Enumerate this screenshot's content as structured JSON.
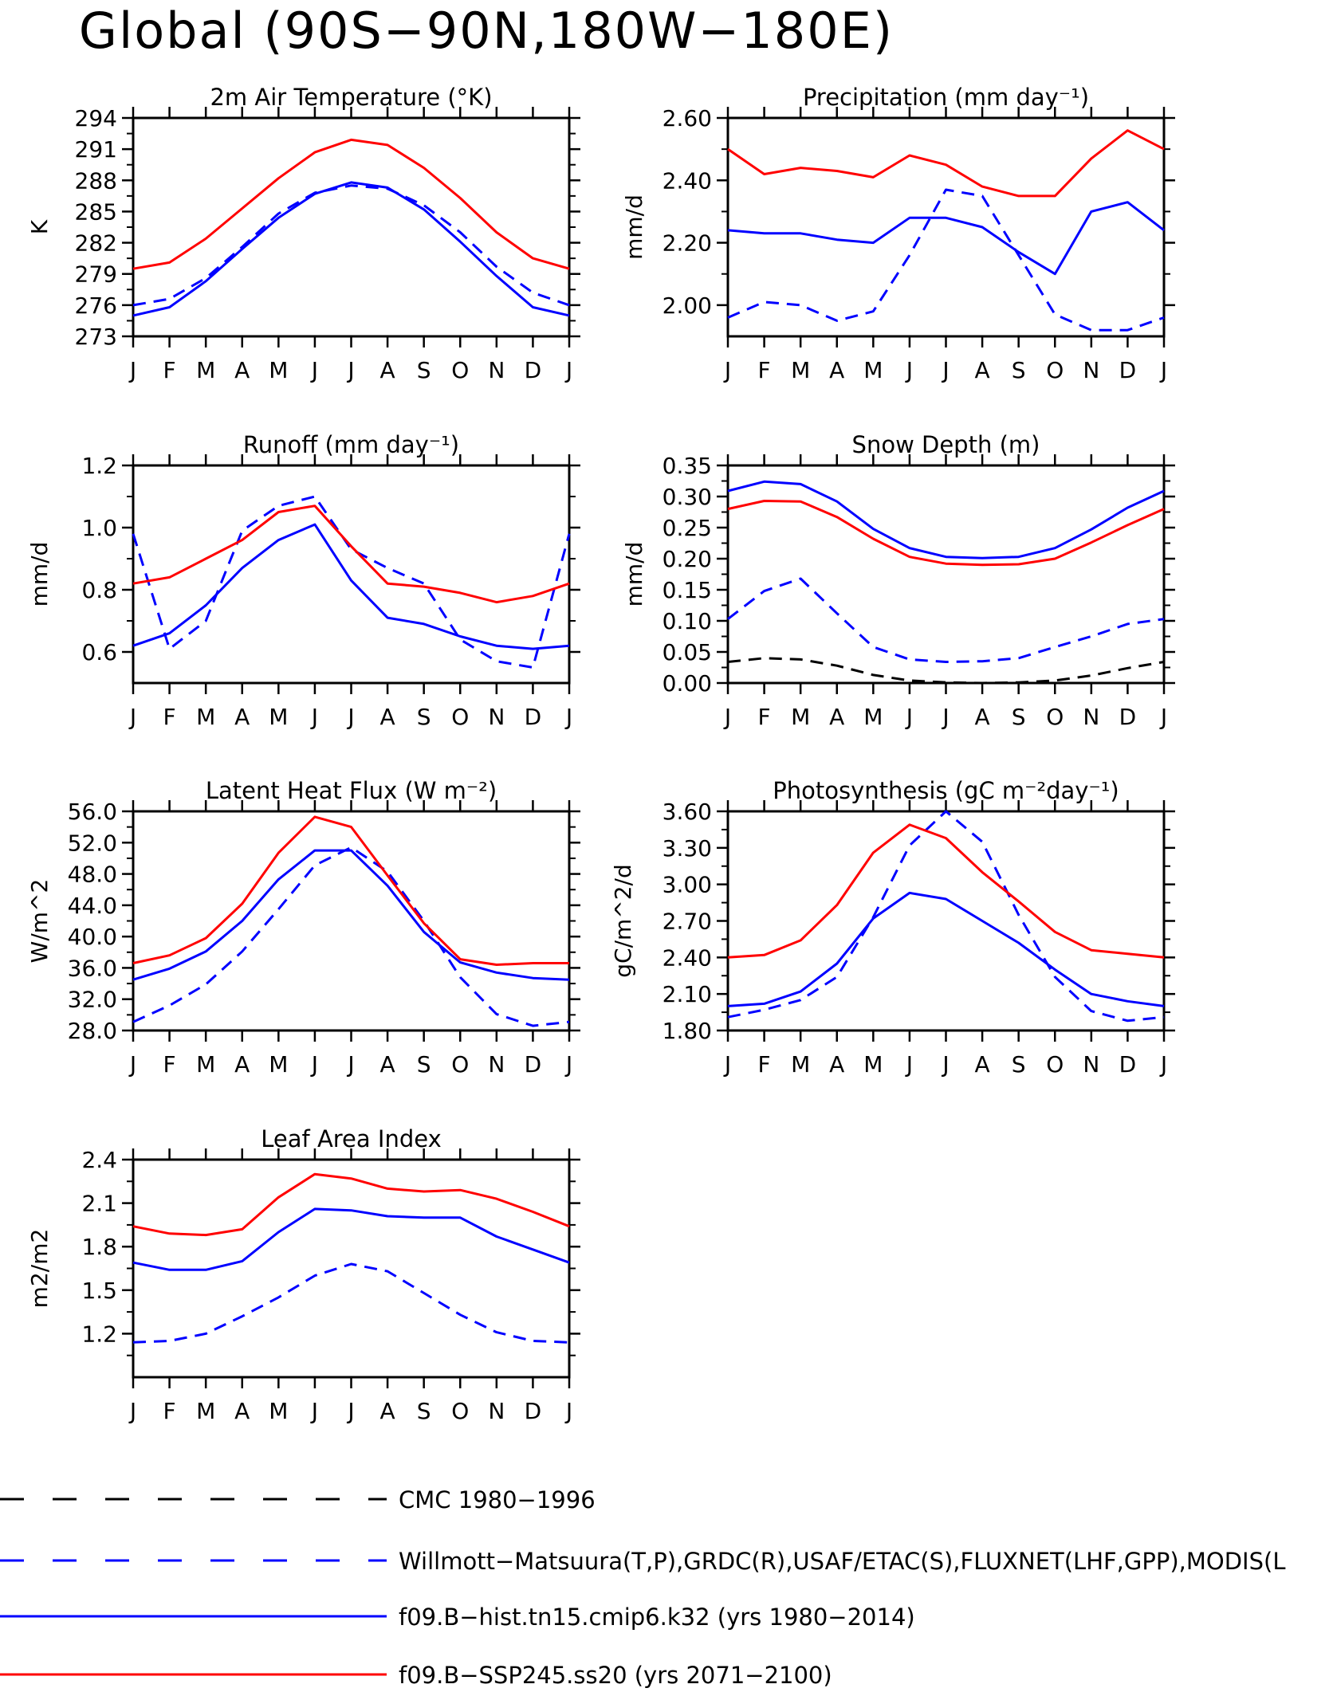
{
  "figure_title": "Global (90S−90N,180W−180E)",
  "colors": {
    "red": "#ff0000",
    "blue": "#0000ff",
    "black": "#000000"
  },
  "months": [
    "J",
    "F",
    "M",
    "A",
    "M",
    "J",
    "J",
    "A",
    "S",
    "O",
    "N",
    "D",
    "J"
  ],
  "legend": [
    {
      "label": "CMC 1980−1996",
      "color": "#000000",
      "style": "dashed"
    },
    {
      "label": "Willmott−Matsuura(T,P),GRDC(R),USAF/ETAC(S),FLUXNET(LHF,GPP),MODIS(L",
      "color": "#0000ff",
      "style": "dashed"
    },
    {
      "label": "f09.B−hist.tn15.cmip6.k32 (yrs 1980−2014)",
      "color": "#0000ff",
      "style": "solid"
    },
    {
      "label": "f09.B−SSP245.ss20 (yrs 2071−2100)",
      "color": "#ff0000",
      "style": "solid"
    }
  ],
  "chart_data": [
    {
      "type": "line",
      "title": "2m Air Temperature (°K)",
      "ylabel": "K",
      "ylim": [
        273,
        294
      ],
      "yticks": [
        "273",
        "276",
        "279",
        "282",
        "285",
        "288",
        "291",
        "294"
      ],
      "categories": [
        "J",
        "F",
        "M",
        "A",
        "M",
        "J",
        "J",
        "A",
        "S",
        "O",
        "N",
        "D",
        "J"
      ],
      "series": [
        {
          "style": "dashed",
          "color": "#0000ff",
          "values": [
            276.0,
            276.6,
            278.6,
            281.6,
            284.8,
            286.8,
            287.5,
            287.2,
            285.6,
            283.0,
            279.7,
            277.2,
            276.0
          ]
        },
        {
          "style": "solid",
          "color": "#0000ff",
          "values": [
            275.0,
            275.8,
            278.3,
            281.4,
            284.4,
            286.7,
            287.8,
            287.3,
            285.2,
            282.1,
            278.8,
            275.8,
            275.0
          ]
        },
        {
          "style": "solid",
          "color": "#ff0000",
          "values": [
            279.5,
            280.1,
            282.4,
            285.3,
            288.2,
            290.7,
            291.9,
            291.4,
            289.2,
            286.3,
            283.0,
            280.5,
            279.5
          ]
        }
      ]
    },
    {
      "type": "line",
      "title": "Precipitation (mm day⁻¹)",
      "ylabel": "mm/d",
      "ylim": [
        1.9,
        2.6
      ],
      "yticks": [
        "2.00",
        "2.20",
        "2.40",
        "2.60"
      ],
      "categories": [
        "J",
        "F",
        "M",
        "A",
        "M",
        "J",
        "J",
        "A",
        "S",
        "O",
        "N",
        "D",
        "J"
      ],
      "series": [
        {
          "style": "dashed",
          "color": "#0000ff",
          "values": [
            1.96,
            2.01,
            2.0,
            1.95,
            1.98,
            2.16,
            2.37,
            2.35,
            2.16,
            1.97,
            1.92,
            1.92,
            1.96
          ]
        },
        {
          "style": "solid",
          "color": "#0000ff",
          "values": [
            2.24,
            2.23,
            2.23,
            2.21,
            2.2,
            2.28,
            2.28,
            2.25,
            2.17,
            2.1,
            2.3,
            2.33,
            2.24
          ]
        },
        {
          "style": "solid",
          "color": "#ff0000",
          "values": [
            2.5,
            2.42,
            2.44,
            2.43,
            2.41,
            2.48,
            2.45,
            2.38,
            2.35,
            2.35,
            2.47,
            2.56,
            2.5
          ]
        }
      ]
    },
    {
      "type": "line",
      "title": "Runoff (mm day⁻¹)",
      "ylabel": "mm/d",
      "ylim": [
        0.5,
        1.2
      ],
      "yticks": [
        "0.6",
        "0.8",
        "1.0",
        "1.2"
      ],
      "categories": [
        "J",
        "F",
        "M",
        "A",
        "M",
        "J",
        "J",
        "A",
        "S",
        "O",
        "N",
        "D",
        "J"
      ],
      "series": [
        {
          "style": "dashed",
          "color": "#0000ff",
          "values": [
            0.98,
            0.61,
            0.7,
            0.99,
            1.07,
            1.1,
            0.93,
            0.87,
            0.82,
            0.64,
            0.57,
            0.55,
            0.98
          ]
        },
        {
          "style": "solid",
          "color": "#0000ff",
          "values": [
            0.62,
            0.66,
            0.75,
            0.87,
            0.96,
            1.01,
            0.83,
            0.71,
            0.69,
            0.65,
            0.62,
            0.61,
            0.62
          ]
        },
        {
          "style": "solid",
          "color": "#ff0000",
          "values": [
            0.82,
            0.84,
            0.9,
            0.96,
            1.05,
            1.07,
            0.94,
            0.82,
            0.81,
            0.79,
            0.76,
            0.78,
            0.82
          ]
        }
      ]
    },
    {
      "type": "line",
      "title": "Snow Depth (m)",
      "ylabel": "mm/d",
      "ylim": [
        0,
        0.35
      ],
      "yticks": [
        "0.00",
        "0.05",
        "0.10",
        "0.15",
        "0.20",
        "0.25",
        "0.30",
        "0.35"
      ],
      "categories": [
        "J",
        "F",
        "M",
        "A",
        "M",
        "J",
        "J",
        "A",
        "S",
        "O",
        "N",
        "D",
        "J"
      ],
      "series": [
        {
          "style": "dashed",
          "color": "#000000",
          "values": [
            0.034,
            0.04,
            0.038,
            0.028,
            0.013,
            0.004,
            0.001,
            0.0,
            0.001,
            0.004,
            0.012,
            0.024,
            0.034
          ]
        },
        {
          "style": "dashed",
          "color": "#0000ff",
          "values": [
            0.103,
            0.148,
            0.168,
            0.112,
            0.058,
            0.038,
            0.034,
            0.035,
            0.04,
            0.058,
            0.075,
            0.095,
            0.103
          ]
        },
        {
          "style": "solid",
          "color": "#0000ff",
          "values": [
            0.309,
            0.324,
            0.32,
            0.292,
            0.248,
            0.217,
            0.203,
            0.201,
            0.203,
            0.217,
            0.247,
            0.282,
            0.309
          ]
        },
        {
          "style": "solid",
          "color": "#ff0000",
          "values": [
            0.28,
            0.293,
            0.292,
            0.267,
            0.232,
            0.203,
            0.192,
            0.19,
            0.191,
            0.2,
            0.226,
            0.254,
            0.28
          ]
        }
      ]
    },
    {
      "type": "line",
      "title": "Latent Heat Flux (W m⁻²)",
      "ylabel": "W/m^2",
      "ylim": [
        28,
        56
      ],
      "yticks": [
        "28.0",
        "32.0",
        "36.0",
        "40.0",
        "44.0",
        "48.0",
        "52.0",
        "56.0"
      ],
      "categories": [
        "J",
        "F",
        "M",
        "A",
        "M",
        "J",
        "J",
        "A",
        "S",
        "O",
        "N",
        "D",
        "J"
      ],
      "series": [
        {
          "style": "dashed",
          "color": "#0000ff",
          "values": [
            29.1,
            31.2,
            33.9,
            38.1,
            43.5,
            49.1,
            51.4,
            48.3,
            42.0,
            34.8,
            30.1,
            28.6,
            29.1
          ]
        },
        {
          "style": "solid",
          "color": "#0000ff",
          "values": [
            34.5,
            35.9,
            38.1,
            42.0,
            47.3,
            51.0,
            51.0,
            46.5,
            40.6,
            36.7,
            35.4,
            34.7,
            34.5
          ]
        },
        {
          "style": "solid",
          "color": "#ff0000",
          "values": [
            36.6,
            37.6,
            39.8,
            44.2,
            50.7,
            55.3,
            54.0,
            47.8,
            41.7,
            37.1,
            36.4,
            36.6,
            36.6
          ]
        }
      ]
    },
    {
      "type": "line",
      "title": "Photosynthesis (gC m⁻²day⁻¹)",
      "ylabel": "gC/m^2/d",
      "ylim": [
        1.8,
        3.6
      ],
      "yticks": [
        "1.80",
        "2.10",
        "2.40",
        "2.70",
        "3.00",
        "3.30",
        "3.60"
      ],
      "categories": [
        "J",
        "F",
        "M",
        "A",
        "M",
        "J",
        "J",
        "A",
        "S",
        "O",
        "N",
        "D",
        "J"
      ],
      "series": [
        {
          "style": "dashed",
          "color": "#0000ff",
          "values": [
            1.91,
            1.97,
            2.05,
            2.24,
            2.73,
            3.32,
            3.6,
            3.35,
            2.75,
            2.24,
            1.96,
            1.88,
            1.91
          ]
        },
        {
          "style": "solid",
          "color": "#0000ff",
          "values": [
            2.0,
            2.02,
            2.12,
            2.35,
            2.72,
            2.93,
            2.88,
            2.7,
            2.52,
            2.3,
            2.1,
            2.04,
            2.0
          ]
        },
        {
          "style": "solid",
          "color": "#ff0000",
          "values": [
            2.4,
            2.42,
            2.54,
            2.83,
            3.26,
            3.49,
            3.38,
            3.1,
            2.86,
            2.61,
            2.46,
            2.43,
            2.4
          ]
        }
      ]
    },
    {
      "type": "line",
      "title": "Leaf Area Index",
      "ylabel": "m2/m2",
      "ylim": [
        0.9,
        2.4
      ],
      "yticks": [
        "1.2",
        "1.5",
        "1.8",
        "2.1",
        "2.4"
      ],
      "categories": [
        "J",
        "F",
        "M",
        "A",
        "M",
        "J",
        "J",
        "A",
        "S",
        "O",
        "N",
        "D",
        "J"
      ],
      "series": [
        {
          "style": "dashed",
          "color": "#0000ff",
          "values": [
            1.14,
            1.15,
            1.2,
            1.32,
            1.45,
            1.6,
            1.68,
            1.63,
            1.48,
            1.33,
            1.21,
            1.15,
            1.14
          ]
        },
        {
          "style": "solid",
          "color": "#0000ff",
          "values": [
            1.69,
            1.64,
            1.64,
            1.7,
            1.9,
            2.06,
            2.05,
            2.01,
            2.0,
            2.0,
            1.87,
            1.78,
            1.69
          ]
        },
        {
          "style": "solid",
          "color": "#ff0000",
          "values": [
            1.94,
            1.89,
            1.88,
            1.92,
            2.14,
            2.3,
            2.27,
            2.2,
            2.18,
            2.19,
            2.13,
            2.04,
            1.94
          ]
        }
      ]
    }
  ]
}
